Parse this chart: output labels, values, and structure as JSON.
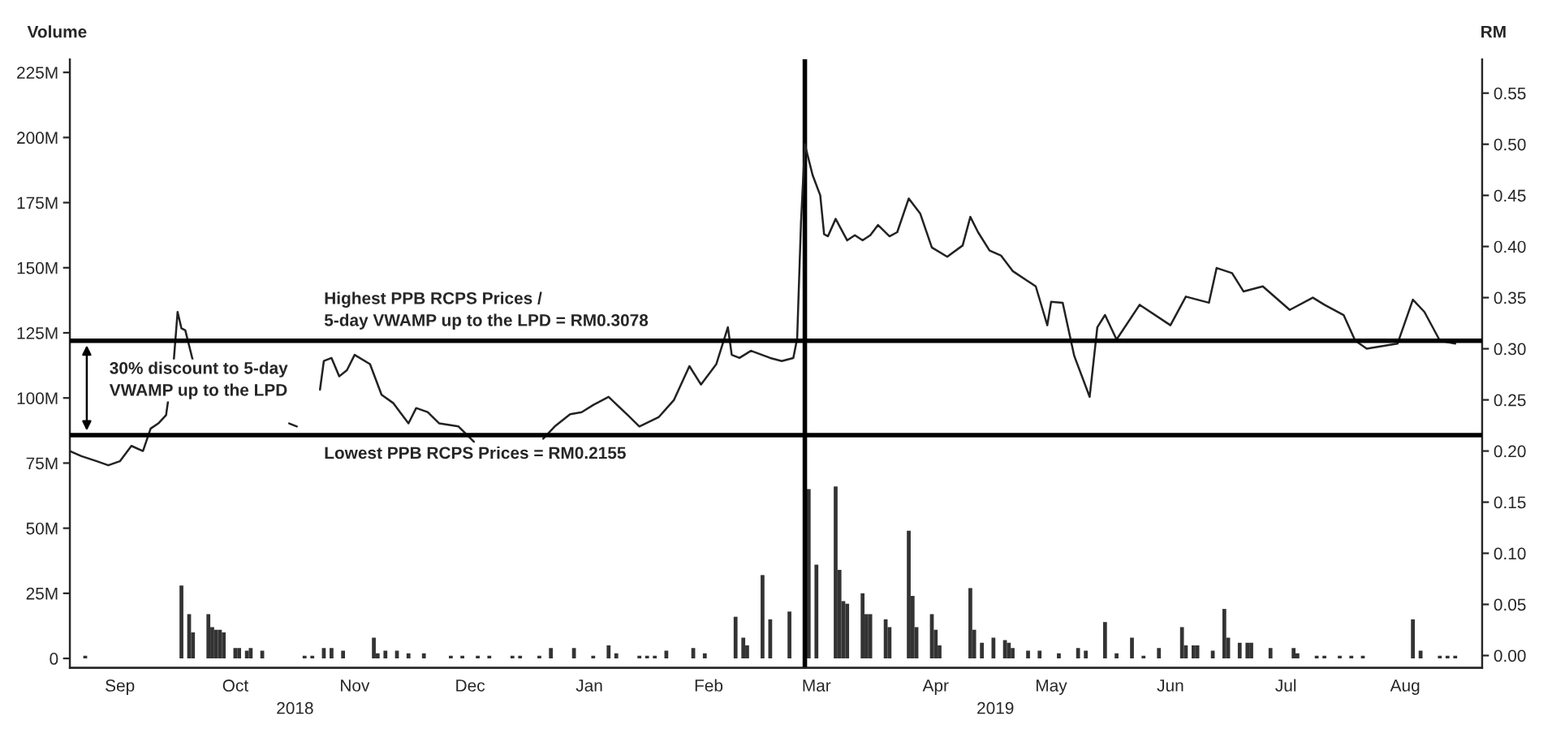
{
  "chart_data": {
    "type": "bar",
    "ylabel": "Volume",
    "y2label": "RM",
    "series": [
      {
        "axis": "y",
        "color": "#333333",
        "x": [
          "2018-09-06",
          "2018-10-01",
          "2018-10-03",
          "2018-10-04",
          "2018-10-08",
          "2018-10-09",
          "2018-10-10",
          "2018-10-11",
          "2018-10-12",
          "2018-10-15",
          "2018-10-16",
          "2018-10-18",
          "2018-10-19",
          "2018-10-22",
          "2018-11-02",
          "2018-11-04",
          "2018-11-07",
          "2018-11-09",
          "2018-11-12",
          "2018-11-20",
          "2018-11-21",
          "2018-11-23",
          "2018-11-26",
          "2018-11-29",
          "2018-12-03",
          "2018-12-10",
          "2018-12-13",
          "2018-12-17",
          "2018-12-20",
          "2018-12-26",
          "2018-12-28",
          "2019-01-02",
          "2019-01-05",
          "2019-01-11",
          "2019-01-16",
          "2019-01-20",
          "2019-01-22",
          "2019-01-28",
          "2019-01-30",
          "2019-02-01",
          "2019-02-04",
          "2019-02-11",
          "2019-02-14",
          "2019-02-22",
          "2019-02-24",
          "2019-02-25",
          "2019-03-01",
          "2019-03-03",
          "2019-03-08",
          "2019-03-13",
          "2019-03-15",
          "2019-03-20",
          "2019-03-21",
          "2019-03-22",
          "2019-03-23",
          "2019-03-27",
          "2019-03-28",
          "2019-03-29",
          "2019-04-02",
          "2019-04-03",
          "2019-04-08",
          "2019-04-09",
          "2019-04-10",
          "2019-04-14",
          "2019-04-15",
          "2019-04-16",
          "2019-04-24",
          "2019-04-25",
          "2019-04-27",
          "2019-04-30",
          "2019-05-03",
          "2019-05-04",
          "2019-05-05",
          "2019-05-09",
          "2019-05-12",
          "2019-05-17",
          "2019-05-22",
          "2019-05-24",
          "2019-05-29",
          "2019-06-01",
          "2019-06-05",
          "2019-06-08",
          "2019-06-12",
          "2019-06-18",
          "2019-06-19",
          "2019-06-21",
          "2019-06-22",
          "2019-06-26",
          "2019-06-29",
          "2019-06-30",
          "2019-07-03",
          "2019-07-05",
          "2019-07-06",
          "2019-07-11",
          "2019-07-17",
          "2019-07-18",
          "2019-07-23",
          "2019-07-25",
          "2019-07-29",
          "2019-08-01",
          "2019-08-04",
          "2019-08-17",
          "2019-08-19",
          "2019-08-24",
          "2019-08-26",
          "2019-08-28"
        ],
        "values": [
          1,
          28,
          17,
          10,
          17,
          12,
          11,
          11,
          10,
          4,
          4,
          3,
          4,
          3,
          1,
          1,
          4,
          4,
          3,
          8,
          2,
          3,
          3,
          2,
          2,
          1,
          1,
          1,
          1,
          1,
          1,
          1,
          4,
          4,
          1,
          5,
          2,
          1,
          1,
          1,
          3,
          4,
          2,
          16,
          8,
          5,
          32,
          15,
          18,
          65,
          36,
          66,
          34,
          22,
          21,
          25,
          17,
          17,
          15,
          12,
          49,
          24,
          12,
          17,
          11,
          5,
          27,
          11,
          6,
          8,
          7,
          6,
          4,
          3,
          3,
          2,
          4,
          3,
          14,
          2,
          8,
          1,
          4,
          12,
          5,
          5,
          5,
          3,
          19,
          8,
          6,
          6,
          6,
          4,
          4,
          2,
          1,
          1,
          1,
          1,
          1,
          15,
          3,
          1,
          1,
          1
        ]
      },
      {
        "type": "line",
        "axis": "y2",
        "color": "#222222",
        "x": [
          "2018-09-02",
          "2018-09-05",
          "2018-09-09",
          "2018-09-12",
          "2018-09-15",
          "2018-09-18",
          "2018-09-21",
          "2018-09-23",
          "2018-09-25",
          "2018-09-27",
          "2018-09-29",
          "2018-09-30",
          "2018-10-01",
          "2018-10-02",
          "2018-10-04",
          "2018-10-06",
          "2018-10-10",
          "2018-10-29",
          "2018-10-31",
          "2018-11-03",
          "2018-11-06",
          "2018-11-07",
          "2018-11-09",
          "2018-11-11",
          "2018-11-13",
          "2018-11-15",
          "2018-11-19",
          "2018-11-22",
          "2018-11-25",
          "2018-11-29",
          "2018-12-01",
          "2018-12-04",
          "2018-12-07",
          "2018-12-12",
          "2018-12-16",
          "2018-12-20",
          "2019-01-03",
          "2019-01-06",
          "2019-01-10",
          "2019-01-13",
          "2019-01-16",
          "2019-01-20",
          "2019-01-25",
          "2019-01-28",
          "2019-02-02",
          "2019-02-06",
          "2019-02-10",
          "2019-02-13",
          "2019-02-17",
          "2019-02-20",
          "2019-02-21",
          "2019-02-23",
          "2019-02-26",
          "2019-03-03",
          "2019-03-06",
          "2019-03-09",
          "2019-03-10",
          "2019-03-11",
          "2019-03-12",
          "2019-03-14",
          "2019-03-16",
          "2019-03-17",
          "2019-03-18",
          "2019-03-20",
          "2019-03-23",
          "2019-03-25",
          "2019-03-27",
          "2019-03-29",
          "2019-03-31",
          "2019-04-03",
          "2019-04-05",
          "2019-04-08",
          "2019-04-11",
          "2019-04-14",
          "2019-04-18",
          "2019-04-22",
          "2019-04-24",
          "2019-04-26",
          "2019-04-29",
          "2019-05-02",
          "2019-05-05",
          "2019-05-09",
          "2019-05-11",
          "2019-05-14",
          "2019-05-15",
          "2019-05-18",
          "2019-05-21",
          "2019-05-25",
          "2019-05-27",
          "2019-05-29",
          "2019-06-01",
          "2019-06-07",
          "2019-06-15",
          "2019-06-19",
          "2019-06-25",
          "2019-06-27",
          "2019-07-01",
          "2019-07-04",
          "2019-07-09",
          "2019-07-16",
          "2019-07-22",
          "2019-07-25",
          "2019-07-30",
          "2019-08-02",
          "2019-08-05",
          "2019-08-13",
          "2019-08-17",
          "2019-08-20",
          "2019-08-24",
          "2019-08-28"
        ],
        "values": [
          0.2,
          0.195,
          0.19,
          0.186,
          0.19,
          0.205,
          0.2,
          0.222,
          0.227,
          0.235,
          0.288,
          0.336,
          0.32,
          0.318,
          0.288,
          null,
          null,
          0.227,
          0.224,
          null,
          0.26,
          0.288,
          0.291,
          0.273,
          0.279,
          0.294,
          0.285,
          0.255,
          0.247,
          0.227,
          0.242,
          0.238,
          0.227,
          0.224,
          0.209,
          null,
          0.212,
          0.224,
          0.236,
          0.238,
          0.245,
          0.253,
          0.235,
          0.224,
          0.233,
          0.25,
          0.283,
          0.265,
          0.285,
          0.321,
          0.294,
          0.291,
          0.298,
          0.291,
          0.288,
          0.291,
          0.31,
          0.424,
          0.5,
          0.47,
          0.45,
          0.412,
          0.41,
          0.427,
          0.406,
          0.411,
          0.406,
          0.411,
          0.421,
          0.41,
          0.414,
          0.447,
          0.432,
          0.399,
          0.39,
          0.401,
          0.429,
          0.414,
          0.396,
          0.391,
          0.376,
          0.366,
          0.361,
          0.323,
          0.346,
          0.345,
          0.293,
          0.253,
          0.321,
          0.333,
          0.309,
          0.343,
          0.323,
          0.351,
          0.345,
          0.379,
          0.374,
          0.356,
          0.361,
          0.338,
          0.35,
          0.343,
          0.333,
          0.308,
          0.3,
          0.305,
          0.348,
          0.336,
          0.308,
          0.305
        ]
      }
    ],
    "xlim": [
      "2018-09-02",
      "2019-09-04"
    ],
    "xticks": [
      {
        "value": "2018-09-15",
        "label": "Sep"
      },
      {
        "value": "2018-10-15",
        "label": "Oct"
      },
      {
        "value": "2018-11-15",
        "label": "Nov"
      },
      {
        "value": "2018-12-15",
        "label": "Dec"
      },
      {
        "value": "2019-01-15",
        "label": "Jan"
      },
      {
        "value": "2019-02-15",
        "label": "Feb"
      },
      {
        "value": "2019-03-15",
        "label": "Mar"
      },
      {
        "value": "2019-04-15",
        "label": "Apr"
      },
      {
        "value": "2019-05-15",
        "label": "May"
      },
      {
        "value": "2019-06-15",
        "label": "Jun"
      },
      {
        "value": "2019-07-15",
        "label": "Jul"
      },
      {
        "value": "2019-08-15",
        "label": "Aug"
      }
    ],
    "ylim": [
      -3.6,
      230
    ],
    "yticks": [
      {
        "value": 0,
        "label": "0"
      },
      {
        "value": 25,
        "label": "25M"
      },
      {
        "value": 50,
        "label": "50M"
      },
      {
        "value": 75,
        "label": "75M"
      },
      {
        "value": 100,
        "label": "100M"
      },
      {
        "value": 125,
        "label": "125M"
      },
      {
        "value": 150,
        "label": "150M"
      },
      {
        "value": 175,
        "label": "175M"
      },
      {
        "value": 200,
        "label": "200M"
      },
      {
        "value": 225,
        "label": "225M"
      }
    ],
    "y2lim": [
      -0.012,
      0.583
    ],
    "y2ticks": [
      {
        "value": 0,
        "label": "0.00"
      },
      {
        "value": 0.05,
        "label": "0.05"
      },
      {
        "value": 0.1,
        "label": "0.10"
      },
      {
        "value": 0.15,
        "label": "0.15"
      },
      {
        "value": 0.2,
        "label": "0.20"
      },
      {
        "value": 0.25,
        "label": "0.25"
      },
      {
        "value": 0.3,
        "label": "0.30"
      },
      {
        "value": 0.35,
        "label": "0.35"
      },
      {
        "value": 0.4,
        "label": "0.40"
      },
      {
        "value": 0.45,
        "label": "0.45"
      },
      {
        "value": 0.5,
        "label": "0.50"
      },
      {
        "value": 0.55,
        "label": "0.55"
      }
    ],
    "ref_lines": [
      {
        "axis": "y2",
        "value": 0.3078,
        "label": "Highest PPB RCPS Prices /\n5-day VWAMP up to the LPD = RM0.3078",
        "color": "#000000"
      },
      {
        "axis": "y2",
        "value": 0.2155,
        "label": "Lowest PPB RCPS Prices = RM0.2155",
        "color": "#000000"
      },
      {
        "axis": "x",
        "value": "2019-03-12",
        "color": "#000000"
      }
    ],
    "annotations": [
      "30% discount to 5-day\nVWAMP up to the LPD",
      "2018",
      "2019"
    ],
    "line_style": "solid",
    "grid": false
  }
}
